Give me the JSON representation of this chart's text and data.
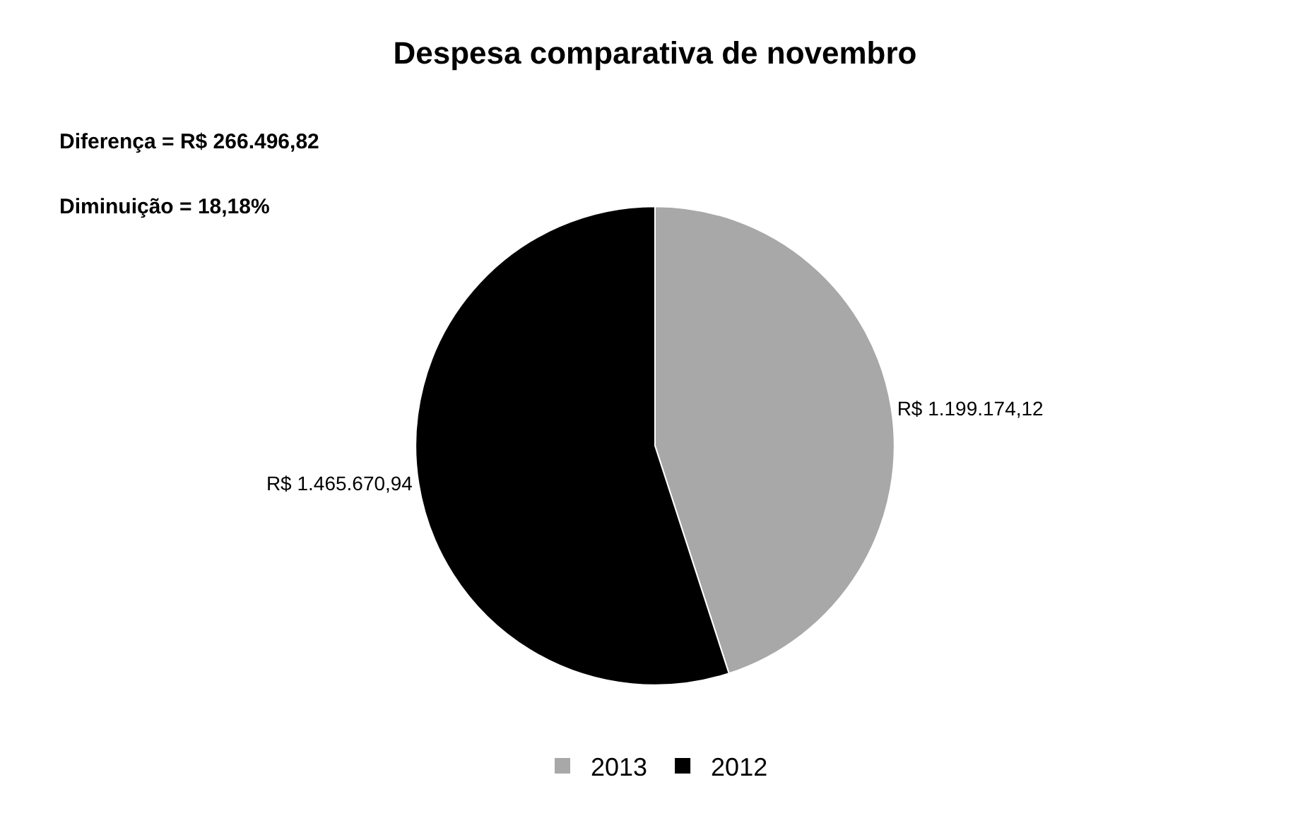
{
  "chart_data": {
    "type": "pie",
    "title": "Despesa comparativa de novembro",
    "categories": [
      "2013",
      "2012"
    ],
    "values": [
      1199174.12,
      1465670.94
    ],
    "value_labels": [
      "R$ 1.199.174,12",
      "R$ 1.465.670,94"
    ],
    "colors": [
      "#a8a8a8",
      "#000000"
    ],
    "annotations": [
      "Diferença = R$ 266.496,82",
      "Diminuição = 18,18%"
    ],
    "legend": "bottom"
  }
}
